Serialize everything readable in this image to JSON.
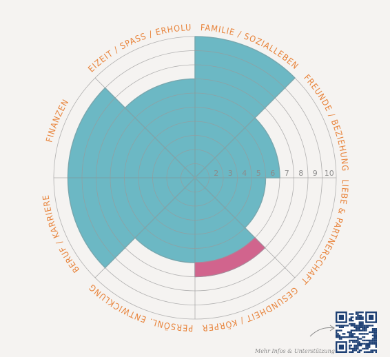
{
  "chart_data": {
    "type": "radial-bar",
    "title": "",
    "scale_max": 10,
    "tick_labels": [
      "2",
      "3",
      "4",
      "5",
      "6",
      "7",
      "8",
      "9",
      "10"
    ],
    "categories": [
      "FAMILIE / SOZIALLEBEN",
      "FREUNDE / BEZIEHUNG",
      "LIEBE & PARTNERSCHAFT",
      "GESUNDHEIT / KÖRPER",
      "PERSÖNL. ENTWICKLUNG",
      "BERUF / KARRIERE",
      "FINANZEN",
      "FREIZEIT / SPASS / ERHOLUNG"
    ],
    "values": [
      10,
      6,
      5,
      7,
      6,
      9,
      9,
      7
    ],
    "segments": [
      {
        "category": "GESUNDHEIT / KÖRPER",
        "from": 6,
        "to": 7
      }
    ],
    "colors": {
      "fill": "#5fb3c0",
      "highlight": "#d1648d",
      "label": "#e8833a",
      "grid": "#9a9a9a"
    }
  },
  "footer": {
    "more_info": "Mehr Infos & Unterstützung",
    "qr_icon": "qr-code-icon"
  }
}
